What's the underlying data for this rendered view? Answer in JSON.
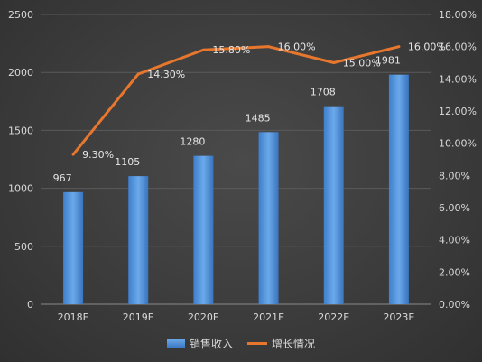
{
  "chart_data": {
    "type": "bar",
    "categories": [
      "2018E",
      "2019E",
      "2020E",
      "2021E",
      "2022E",
      "2023E"
    ],
    "series": [
      {
        "name": "销售收入",
        "type": "bar",
        "axis": "left",
        "values": [
          967,
          1105,
          1280,
          1485,
          1708,
          1981
        ],
        "labels": [
          "967",
          "1105",
          "1280",
          "1485",
          "1708",
          "1981"
        ]
      },
      {
        "name": "增长情况",
        "type": "line",
        "axis": "right",
        "values": [
          9.3,
          14.3,
          15.8,
          16.0,
          15.0,
          16.0
        ],
        "labels": [
          "9.30%",
          "14.30%",
          "15.80%",
          "16.00%",
          "15.00%",
          "16.00%"
        ]
      }
    ],
    "y_left": {
      "ylim": [
        0,
        2500
      ],
      "ticks": [
        "0",
        "500",
        "1000",
        "1500",
        "2000",
        "2500"
      ]
    },
    "y_right": {
      "ylim": [
        0,
        18
      ],
      "ticks": [
        "0.00%",
        "2.00%",
        "4.00%",
        "6.00%",
        "8.00%",
        "10.00%",
        "12.00%",
        "14.00%",
        "16.00%",
        "18.00%"
      ]
    },
    "grid": true,
    "legend": "bottom",
    "colors": {
      "bar": "#4a8fd8",
      "line": "#e8772e",
      "background": "#3c3c3c"
    }
  }
}
